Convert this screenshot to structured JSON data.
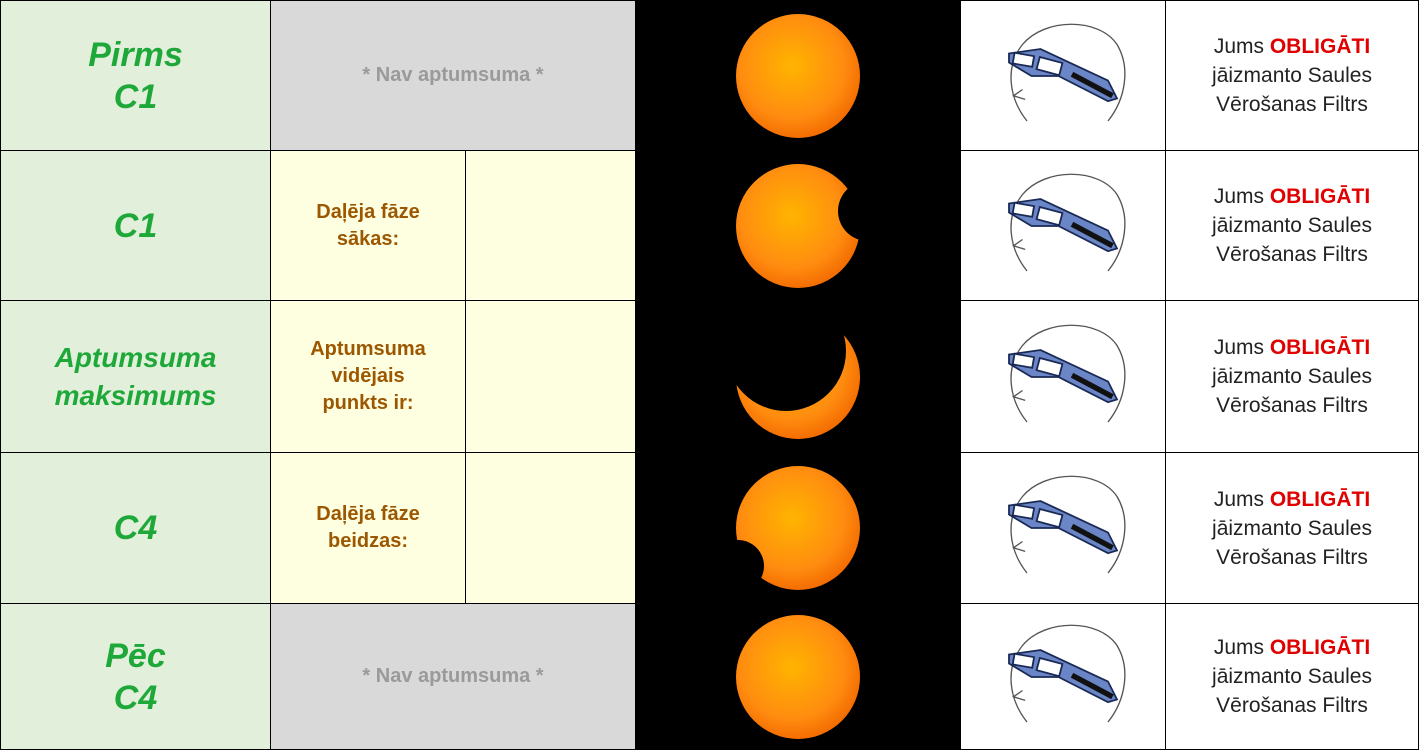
{
  "rows": [
    {
      "phase": [
        "Pirms",
        "C1"
      ],
      "status": "* Nav aptumsuma *",
      "warning": [
        "Jums",
        "OBLIGĀTI",
        "jāizmanto Saules",
        "Vērošanas Filtrs"
      ]
    },
    {
      "phase": [
        "C1"
      ],
      "event": [
        "Daļēja fāze",
        "sākas:"
      ],
      "warning": [
        "Jums",
        "OBLIGĀTI",
        "jāizmanto Saules",
        "Vērošanas Filtrs"
      ]
    },
    {
      "phase": [
        "Aptumsuma",
        "maksimums"
      ],
      "event": [
        "Aptumsuma",
        "vidējais",
        "punkts ir:"
      ],
      "warning": [
        "Jums",
        "OBLIGĀTI",
        "jāizmanto Saules",
        "Vērošanas Filtrs"
      ]
    },
    {
      "phase": [
        "C4"
      ],
      "event": [
        "Daļēja fāze",
        "beidzas:"
      ],
      "warning": [
        "Jums",
        "OBLIGĀTI",
        "jāizmanto Saules",
        "Vērošanas Filtrs"
      ]
    },
    {
      "phase": [
        "Pēc",
        "C4"
      ],
      "status": "* Nav aptumsuma *",
      "warning": [
        "Jums",
        "OBLIGĀTI",
        "jāizmanto Saules",
        "Vērošanas Filtrs"
      ]
    }
  ]
}
